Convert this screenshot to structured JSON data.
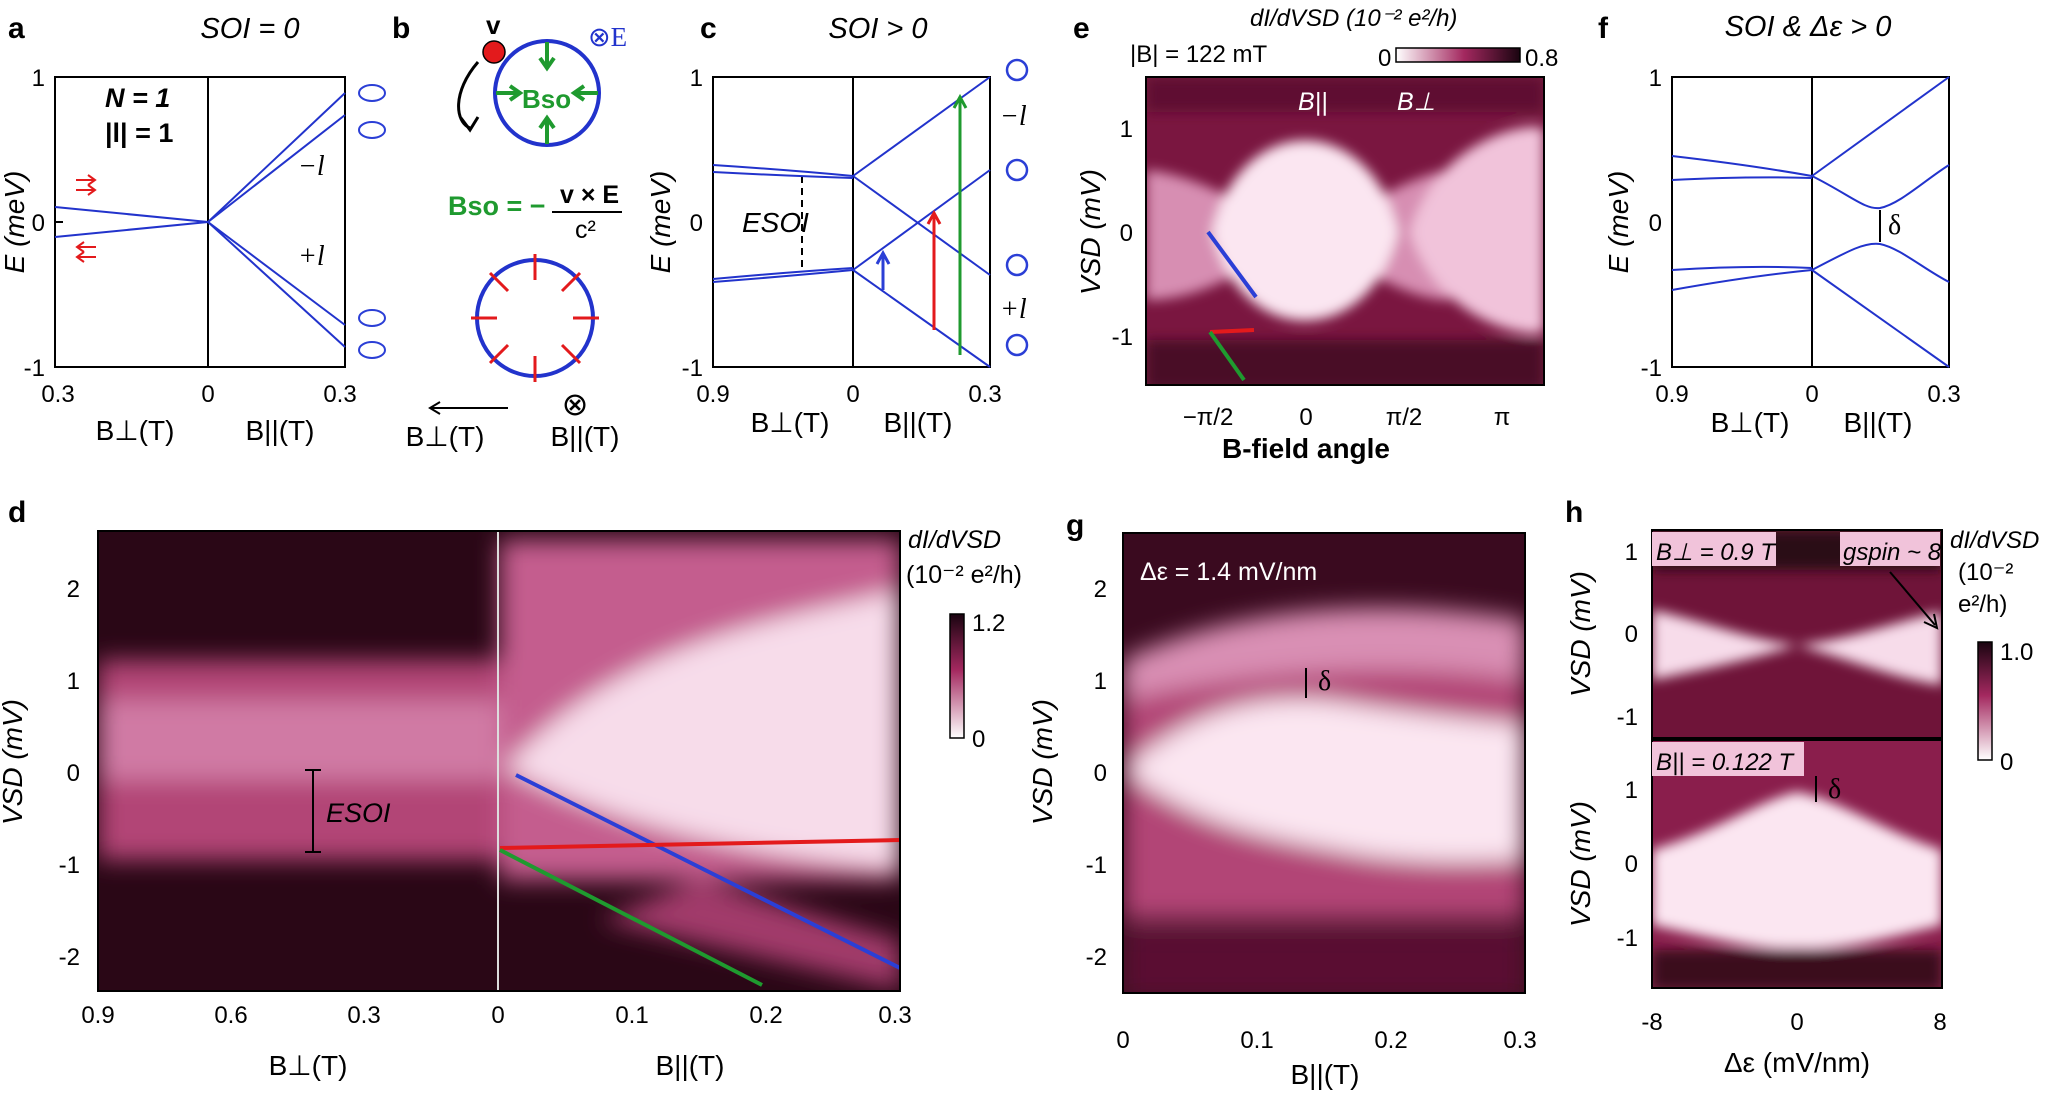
{
  "panels": {
    "a": {
      "label": "a",
      "title": "SOI = 0",
      "ylabel": "E (meV)",
      "yticks": [
        "1",
        "0",
        "-1"
      ],
      "xticks": [
        "0.3",
        "0",
        "0.3"
      ],
      "xlabel_left": "B⊥(T)",
      "xlabel_right": "B||(T)",
      "annot_N": "N = 1",
      "annot_l": "|l| = 1",
      "branch_minus": "−l",
      "branch_plus": "+l"
    },
    "b": {
      "label": "b",
      "v_label": "v",
      "E_dir": "⊗E",
      "Bso_label": "Bso",
      "formula_lhs": "Bso = −",
      "formula_num": "v × E",
      "formula_den": "c²",
      "xlabel_left": "B⊥(T)",
      "xlabel_right": "B||(T)",
      "out_symbol": "⊗"
    },
    "c": {
      "label": "c",
      "title": "SOI > 0",
      "ylabel": "E (meV)",
      "yticks": [
        "1",
        "0",
        "-1"
      ],
      "xticks": [
        "0.9",
        "0",
        "0.3"
      ],
      "xlabel_left": "B⊥(T)",
      "xlabel_right": "B||(T)",
      "esoi": "ESOI",
      "branch_minus": "−l",
      "branch_plus": "+l"
    },
    "d": {
      "label": "d",
      "ylabel": "VSD (mV)",
      "yticks": [
        "2",
        "1",
        "0",
        "-1",
        "-2"
      ],
      "xticks": [
        "0.9",
        "0.6",
        "0.3",
        "0",
        "0.1",
        "0.2",
        "0.3"
      ],
      "xlabel_left": "B⊥(T)",
      "xlabel_right": "B||(T)",
      "esoi": "ESOI",
      "cbar_title1": "dI/dVSD",
      "cbar_title2": "(10⁻² e²/h)",
      "cbar_max": "1.2",
      "cbar_min": "0"
    },
    "e": {
      "label": "e",
      "field": "|B| = 122 mT",
      "cbar_title": "dI/dVSD (10⁻² e²/h)",
      "cbar_min": "0",
      "cbar_max": "0.8",
      "ylabel": "VSD (mV)",
      "yticks": [
        "1",
        "0",
        "-1"
      ],
      "xticks": [
        "−π/2",
        "0",
        "π/2",
        "π"
      ],
      "xlabel": "B-field angle",
      "mark_par": "B||",
      "mark_perp": "B⊥"
    },
    "f": {
      "label": "f",
      "title": "SOI & Δε > 0",
      "ylabel": "E (meV)",
      "yticks": [
        "1",
        "0",
        "-1"
      ],
      "xticks": [
        "0.9",
        "0",
        "0.3"
      ],
      "xlabel_left": "B⊥(T)",
      "xlabel_right": "B||(T)",
      "delta": "δ"
    },
    "g": {
      "label": "g",
      "annot": "Δε = 1.4 mV/nm",
      "ylabel": "VSD (mV)",
      "yticks": [
        "2",
        "1",
        "0",
        "-1",
        "-2"
      ],
      "xticks": [
        "0",
        "0.1",
        "0.2",
        "0.3"
      ],
      "xlabel": "B||(T)",
      "delta": "δ"
    },
    "h": {
      "label": "h",
      "top_annot": "B⊥ = 0.9 T",
      "bottom_annot": "B|| = 0.122 T",
      "gspin": "gspin ~ 8",
      "ylabel": "VSD (mV)",
      "yticks": [
        "1",
        "0",
        "-1"
      ],
      "xticks": [
        "-8",
        "0",
        "8"
      ],
      "xlabel": "Δε  (mV/nm)",
      "cbar_title1": "dI/dVSD",
      "cbar_title2": "(10⁻²",
      "cbar_title3": "e²/h)",
      "cbar_max": "1.0",
      "cbar_min": "0",
      "delta": "δ"
    }
  },
  "colors": {
    "levels": "#2233cc",
    "red": "#e31a1c",
    "green": "#1f9a2f",
    "blue": "#2b3fd6",
    "map_dark": "#2a0716",
    "map_mid": "#a3285f",
    "map_light": "#fbe6f1"
  }
}
